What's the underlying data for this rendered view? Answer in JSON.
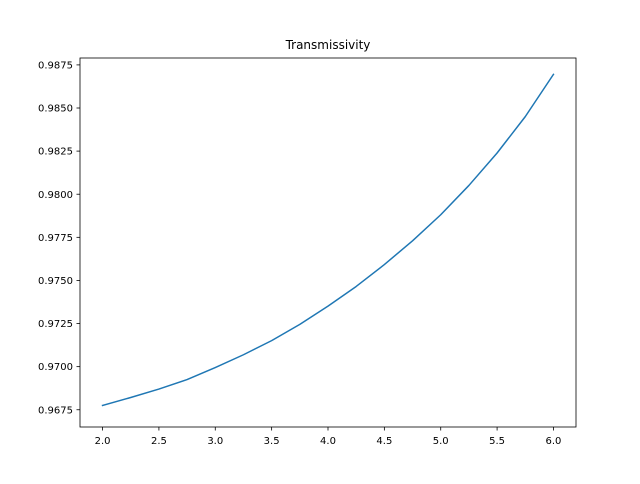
{
  "chart_data": {
    "type": "line",
    "title": "Transmissivity",
    "xlabel": "",
    "ylabel": "",
    "xlim": [
      1.8,
      6.2
    ],
    "ylim": [
      0.9665,
      0.9879
    ],
    "xticks": [
      2.0,
      2.5,
      3.0,
      3.5,
      4.0,
      4.5,
      5.0,
      5.5,
      6.0
    ],
    "xtick_labels": [
      "2.0",
      "2.5",
      "3.0",
      "3.5",
      "4.0",
      "4.5",
      "5.0",
      "5.5",
      "6.0"
    ],
    "yticks": [
      0.9675,
      0.97,
      0.9725,
      0.975,
      0.9775,
      0.98,
      0.9825,
      0.985,
      0.9875
    ],
    "ytick_labels": [
      "0.9675",
      "0.9700",
      "0.9725",
      "0.9750",
      "0.9775",
      "0.9800",
      "0.9825",
      "0.9850",
      "0.9875"
    ],
    "grid": false,
    "series": [
      {
        "color": "#1f77b4",
        "x": [
          2.0,
          2.25,
          2.5,
          2.75,
          3.0,
          3.25,
          3.5,
          3.75,
          4.0,
          4.25,
          4.5,
          4.75,
          5.0,
          5.25,
          5.5,
          5.75,
          6.0
        ],
        "y": [
          0.96775,
          0.96821,
          0.9687,
          0.96925,
          0.96995,
          0.97069,
          0.97151,
          0.97245,
          0.97351,
          0.97465,
          0.97592,
          0.9773,
          0.97881,
          0.98051,
          0.98239,
          0.9845,
          0.98695
        ]
      }
    ]
  }
}
